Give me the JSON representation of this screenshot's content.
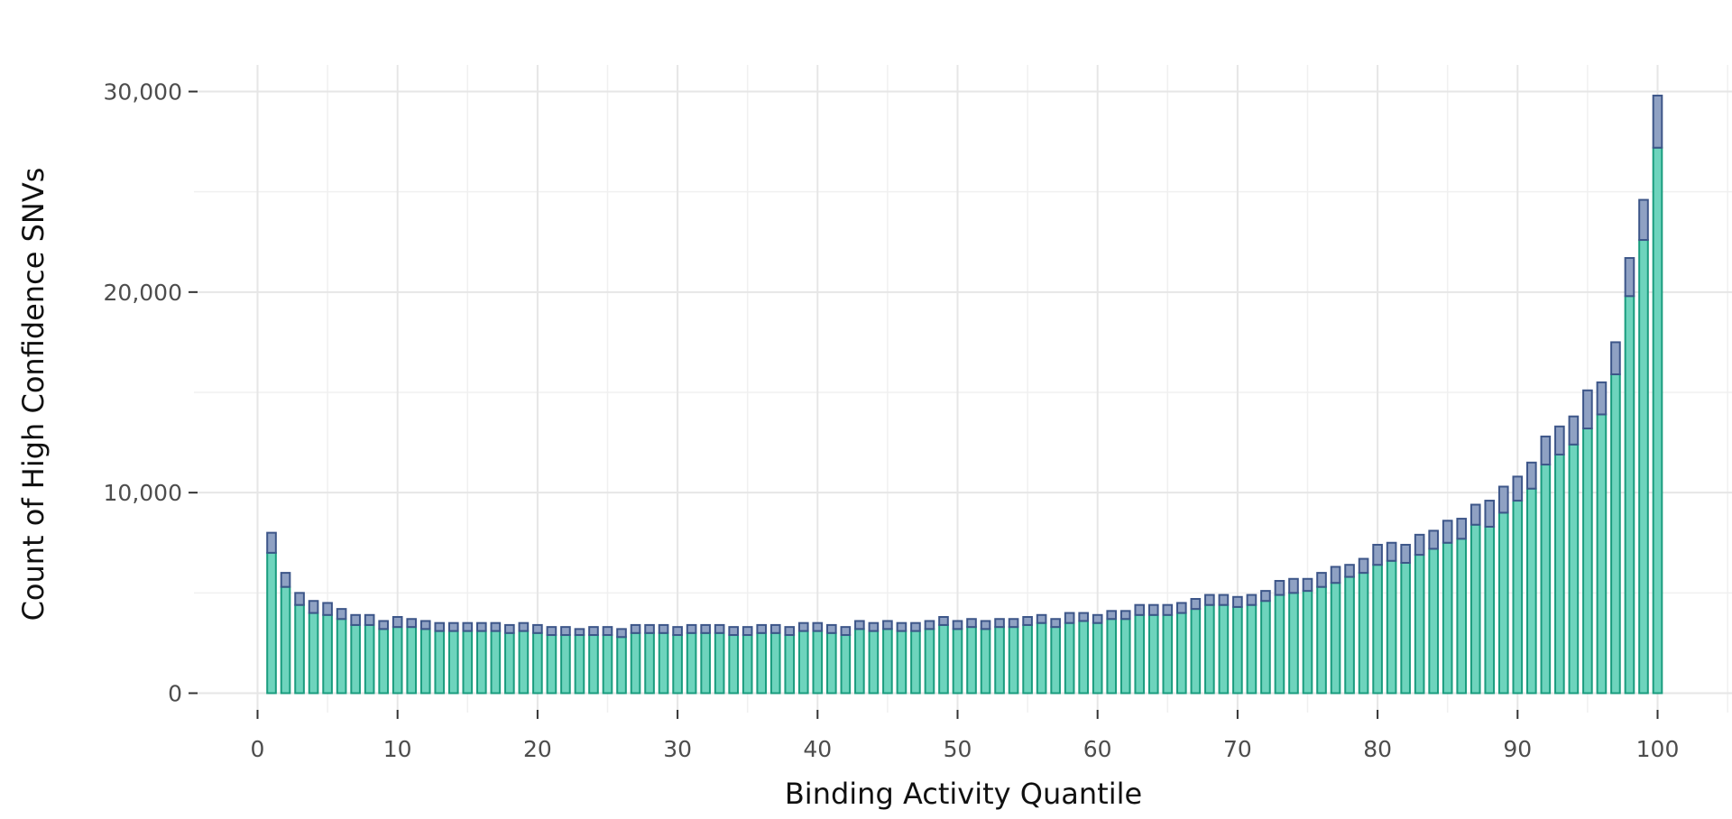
{
  "chart_data": {
    "type": "bar",
    "stacked": true,
    "title": "",
    "xlabel": "Binding Activity Quantile",
    "ylabel": "Count of High Confidence SNVs",
    "xlim": [
      0,
      100
    ],
    "ylim": [
      0,
      30000
    ],
    "x_ticks": [
      0,
      10,
      20,
      30,
      40,
      50,
      60,
      70,
      80,
      90,
      100
    ],
    "x_tick_labels": [
      "0",
      "10",
      "20",
      "30",
      "40",
      "50",
      "60",
      "70",
      "80",
      "90",
      "100"
    ],
    "y_ticks": [
      0,
      10000,
      20000,
      30000
    ],
    "y_tick_labels": [
      "0",
      "10,000",
      "20,000",
      "30,000"
    ],
    "grid": true,
    "legend": "none",
    "colors": {
      "bottom_fill": "#6ed4bd",
      "bottom_stroke": "#1a9c7e",
      "top_fill": "#8fa1c3",
      "top_stroke": "#3d5689",
      "grid": "#e6e6e6"
    },
    "x": [
      1,
      2,
      3,
      4,
      5,
      6,
      7,
      8,
      9,
      10,
      11,
      12,
      13,
      14,
      15,
      16,
      17,
      18,
      19,
      20,
      21,
      22,
      23,
      24,
      25,
      26,
      27,
      28,
      29,
      30,
      31,
      32,
      33,
      34,
      35,
      36,
      37,
      38,
      39,
      40,
      41,
      42,
      43,
      44,
      45,
      46,
      47,
      48,
      49,
      50,
      51,
      52,
      53,
      54,
      55,
      56,
      57,
      58,
      59,
      60,
      61,
      62,
      63,
      64,
      65,
      66,
      67,
      68,
      69,
      70,
      71,
      72,
      73,
      74,
      75,
      76,
      77,
      78,
      79,
      80,
      81,
      82,
      83,
      84,
      85,
      86,
      87,
      88,
      89,
      90,
      91,
      92,
      93,
      94,
      95,
      96,
      97,
      98,
      99,
      100
    ],
    "series": [
      {
        "values": [
          7000,
          5300,
          4400,
          4000,
          3900,
          3700,
          3400,
          3400,
          3200,
          3300,
          3300,
          3200,
          3100,
          3100,
          3100,
          3100,
          3100,
          3000,
          3100,
          3000,
          2900,
          2900,
          2900,
          2900,
          2900,
          2800,
          3000,
          3000,
          3000,
          2900,
          3000,
          3000,
          3000,
          2900,
          2900,
          3000,
          3000,
          2900,
          3100,
          3100,
          3000,
          2900,
          3200,
          3100,
          3200,
          3100,
          3100,
          3200,
          3400,
          3200,
          3300,
          3200,
          3300,
          3300,
          3400,
          3500,
          3300,
          3500,
          3600,
          3500,
          3700,
          3700,
          3900,
          3900,
          3900,
          4000,
          4200,
          4400,
          4400,
          4300,
          4400,
          4600,
          4900,
          5000,
          5100,
          5300,
          5500,
          5800,
          6000,
          6400,
          6600,
          6500,
          6900,
          7200,
          7500,
          7700,
          8400,
          8300,
          9000,
          9600,
          10200,
          11400,
          11900,
          12400,
          13200,
          13900,
          15900,
          19800,
          22600,
          27200
        ]
      },
      {
        "values": [
          1000,
          700,
          600,
          600,
          600,
          500,
          500,
          500,
          400,
          500,
          400,
          400,
          400,
          400,
          400,
          400,
          400,
          400,
          400,
          400,
          400,
          400,
          300,
          400,
          400,
          400,
          400,
          400,
          400,
          400,
          400,
          400,
          400,
          400,
          400,
          400,
          400,
          400,
          400,
          400,
          400,
          400,
          400,
          400,
          400,
          400,
          400,
          400,
          400,
          400,
          400,
          400,
          400,
          400,
          400,
          400,
          400,
          500,
          400,
          400,
          400,
          400,
          500,
          500,
          500,
          500,
          500,
          500,
          500,
          500,
          500,
          500,
          700,
          700,
          600,
          700,
          800,
          600,
          700,
          1000,
          900,
          900,
          1000,
          900,
          1100,
          1000,
          1000,
          1300,
          1300,
          1200,
          1300,
          1400,
          1400,
          1400,
          1900,
          1600,
          1600,
          1900,
          2000,
          2600
        ]
      }
    ]
  }
}
